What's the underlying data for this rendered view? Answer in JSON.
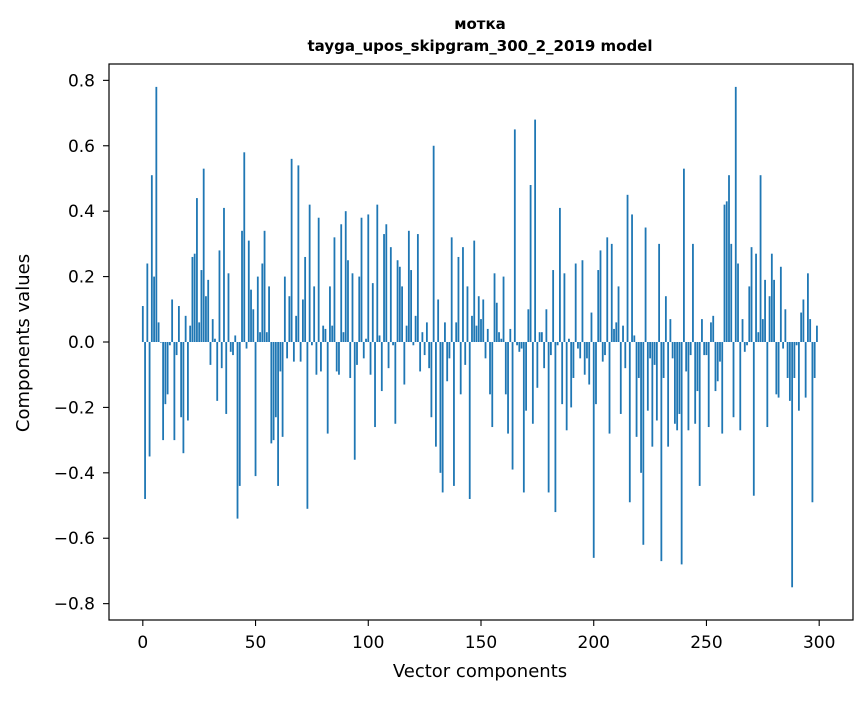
{
  "chart_data": {
    "type": "bar",
    "title": "мотка",
    "subtitle": "tayga_upos_skipgram_300_2_2019 model",
    "xlabel": "Vector components",
    "ylabel": "Components values",
    "xlim": [
      -15,
      315
    ],
    "ylim": [
      -0.85,
      0.85
    ],
    "x_ticks": [
      0,
      50,
      100,
      150,
      200,
      250,
      300
    ],
    "x_tick_labels": [
      "0",
      "50",
      "100",
      "150",
      "200",
      "250",
      "300"
    ],
    "y_ticks": [
      0.8,
      0.6,
      0.4,
      0.2,
      0.0,
      -0.2,
      -0.4,
      -0.6,
      -0.8
    ],
    "y_tick_labels": [
      "0.8",
      "0.6",
      "0.4",
      "0.2",
      "0.0",
      "−0.2",
      "−0.4",
      "−0.6",
      "−0.8"
    ],
    "bar_color": "#1f77b4",
    "grid": false,
    "values": [
      0.11,
      -0.48,
      0.24,
      -0.35,
      0.51,
      0.2,
      0.78,
      0.06,
      0.0,
      -0.3,
      -0.19,
      -0.16,
      -0.01,
      0.13,
      -0.3,
      -0.04,
      0.11,
      -0.23,
      -0.34,
      0.08,
      -0.24,
      0.05,
      0.26,
      0.27,
      0.44,
      0.06,
      0.22,
      0.53,
      0.14,
      0.19,
      -0.07,
      0.07,
      0.01,
      -0.18,
      0.28,
      -0.08,
      0.41,
      -0.22,
      0.21,
      -0.03,
      -0.04,
      0.02,
      -0.54,
      -0.44,
      0.34,
      0.58,
      -0.02,
      0.31,
      0.16,
      0.1,
      -0.41,
      0.2,
      0.03,
      0.24,
      0.34,
      0.03,
      0.17,
      -0.31,
      -0.3,
      -0.23,
      -0.44,
      -0.09,
      -0.29,
      0.2,
      -0.05,
      0.14,
      0.56,
      -0.06,
      0.08,
      0.54,
      -0.06,
      0.13,
      0.26,
      -0.51,
      0.42,
      -0.01,
      0.17,
      -0.1,
      0.38,
      -0.09,
      0.05,
      0.04,
      -0.28,
      0.17,
      0.05,
      0.32,
      -0.09,
      -0.1,
      0.36,
      0.03,
      0.4,
      0.25,
      -0.11,
      0.21,
      -0.36,
      -0.07,
      0.2,
      0.38,
      -0.05,
      0.01,
      0.39,
      -0.1,
      0.18,
      -0.26,
      0.42,
      0.02,
      -0.15,
      0.33,
      0.36,
      -0.08,
      0.29,
      -0.01,
      -0.25,
      0.25,
      0.23,
      0.17,
      -0.13,
      0.05,
      0.34,
      0.22,
      -0.01,
      0.08,
      0.33,
      -0.09,
      0.03,
      -0.04,
      0.06,
      -0.08,
      -0.23,
      0.6,
      -0.32,
      0.13,
      -0.4,
      -0.46,
      0.06,
      -0.12,
      -0.05,
      0.32,
      -0.44,
      0.06,
      0.26,
      -0.16,
      0.29,
      -0.07,
      0.17,
      -0.48,
      0.08,
      0.31,
      0.05,
      0.14,
      0.07,
      0.13,
      -0.05,
      0.04,
      -0.16,
      -0.26,
      0.21,
      0.12,
      0.03,
      0.01,
      0.2,
      -0.16,
      -0.28,
      0.04,
      -0.39,
      0.65,
      -0.01,
      -0.03,
      -0.02,
      -0.46,
      -0.21,
      0.1,
      0.48,
      -0.25,
      0.68,
      -0.14,
      0.03,
      0.03,
      -0.08,
      0.1,
      -0.46,
      -0.04,
      0.22,
      -0.52,
      -0.01,
      0.41,
      -0.19,
      0.21,
      -0.27,
      0.01,
      -0.2,
      -0.11,
      0.24,
      -0.02,
      -0.05,
      0.25,
      -0.1,
      -0.05,
      -0.13,
      0.09,
      -0.66,
      -0.19,
      0.22,
      0.28,
      -0.06,
      -0.04,
      0.32,
      -0.28,
      0.3,
      0.04,
      0.06,
      0.17,
      -0.22,
      0.05,
      -0.08,
      0.45,
      -0.49,
      0.39,
      0.02,
      -0.29,
      -0.11,
      -0.4,
      -0.62,
      0.35,
      -0.21,
      -0.05,
      -0.32,
      -0.07,
      -0.24,
      0.3,
      -0.67,
      -0.11,
      0.14,
      -0.32,
      0.07,
      -0.05,
      -0.25,
      -0.27,
      -0.22,
      -0.68,
      0.53,
      -0.09,
      -0.27,
      -0.04,
      0.3,
      -0.25,
      -0.15,
      -0.44,
      0.07,
      -0.04,
      -0.04,
      -0.26,
      0.06,
      0.08,
      -0.15,
      -0.12,
      -0.06,
      -0.28,
      0.42,
      0.43,
      0.51,
      0.3,
      -0.23,
      0.78,
      0.24,
      -0.27,
      0.07,
      -0.03,
      -0.01,
      0.17,
      0.29,
      -0.47,
      0.27,
      0.03,
      0.51,
      0.07,
      0.19,
      -0.26,
      0.14,
      0.27,
      0.19,
      -0.16,
      -0.17,
      0.23,
      -0.02,
      0.1,
      -0.11,
      -0.18,
      -0.75,
      -0.11,
      -0.01,
      -0.21,
      0.09,
      0.13,
      -0.17,
      0.21,
      0.07,
      -0.49,
      -0.11,
      0.05
    ]
  }
}
